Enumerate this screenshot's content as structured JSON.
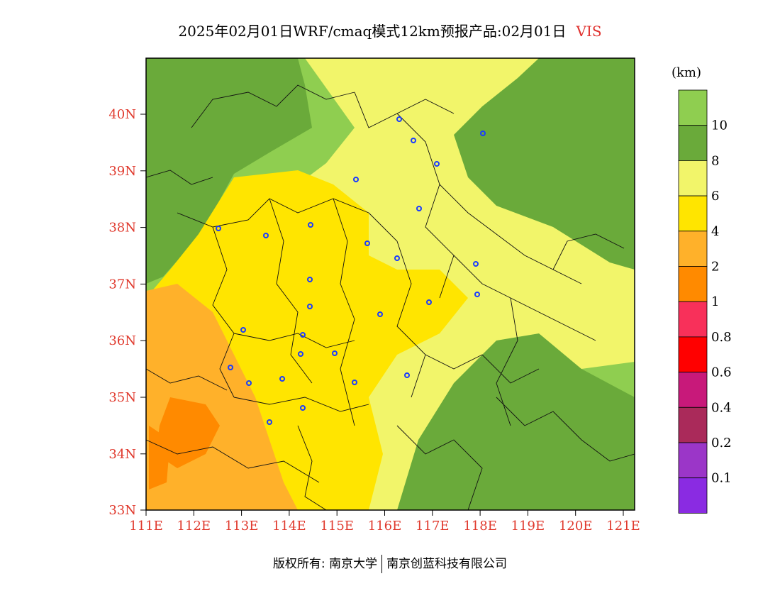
{
  "title": {
    "main": "2025年02月01日WRF/cmaq模式12km预报产品:02月01日",
    "variable": "VIS",
    "variable_color": "#e0302d"
  },
  "axes": {
    "x_ticks": [
      "111E",
      "112E",
      "113E",
      "114E",
      "115E",
      "116E",
      "117E",
      "118E",
      "119E",
      "120E",
      "121E"
    ],
    "y_ticks": [
      "40N",
      "39N",
      "38N",
      "37N",
      "36N",
      "35N",
      "34N",
      "33N"
    ],
    "tick_color": "#e03a2e"
  },
  "colorbar": {
    "unit": "(km)",
    "levels": [
      {
        "label": "",
        "color": "#8fce50"
      },
      {
        "label": "10",
        "color": "#6aaa3a"
      },
      {
        "label": "8",
        "color": "#f2f56a"
      },
      {
        "label": "6",
        "color": "#ffe500"
      },
      {
        "label": "4",
        "color": "#ffb12a"
      },
      {
        "label": "2",
        "color": "#ff8a00"
      },
      {
        "label": "1",
        "color": "#f8305a"
      },
      {
        "label": "0.8",
        "color": "#ff0000"
      },
      {
        "label": "0.6",
        "color": "#c8197a"
      },
      {
        "label": "0.4",
        "color": "#aa2a5a"
      },
      {
        "label": "0.2",
        "color": "#9b36c8"
      },
      {
        "label": "0.1",
        "color": "#8a2be2"
      }
    ]
  },
  "footer": {
    "left": "版权所有: 南京大学",
    "right": "南京创蓝科技有限公司"
  }
}
